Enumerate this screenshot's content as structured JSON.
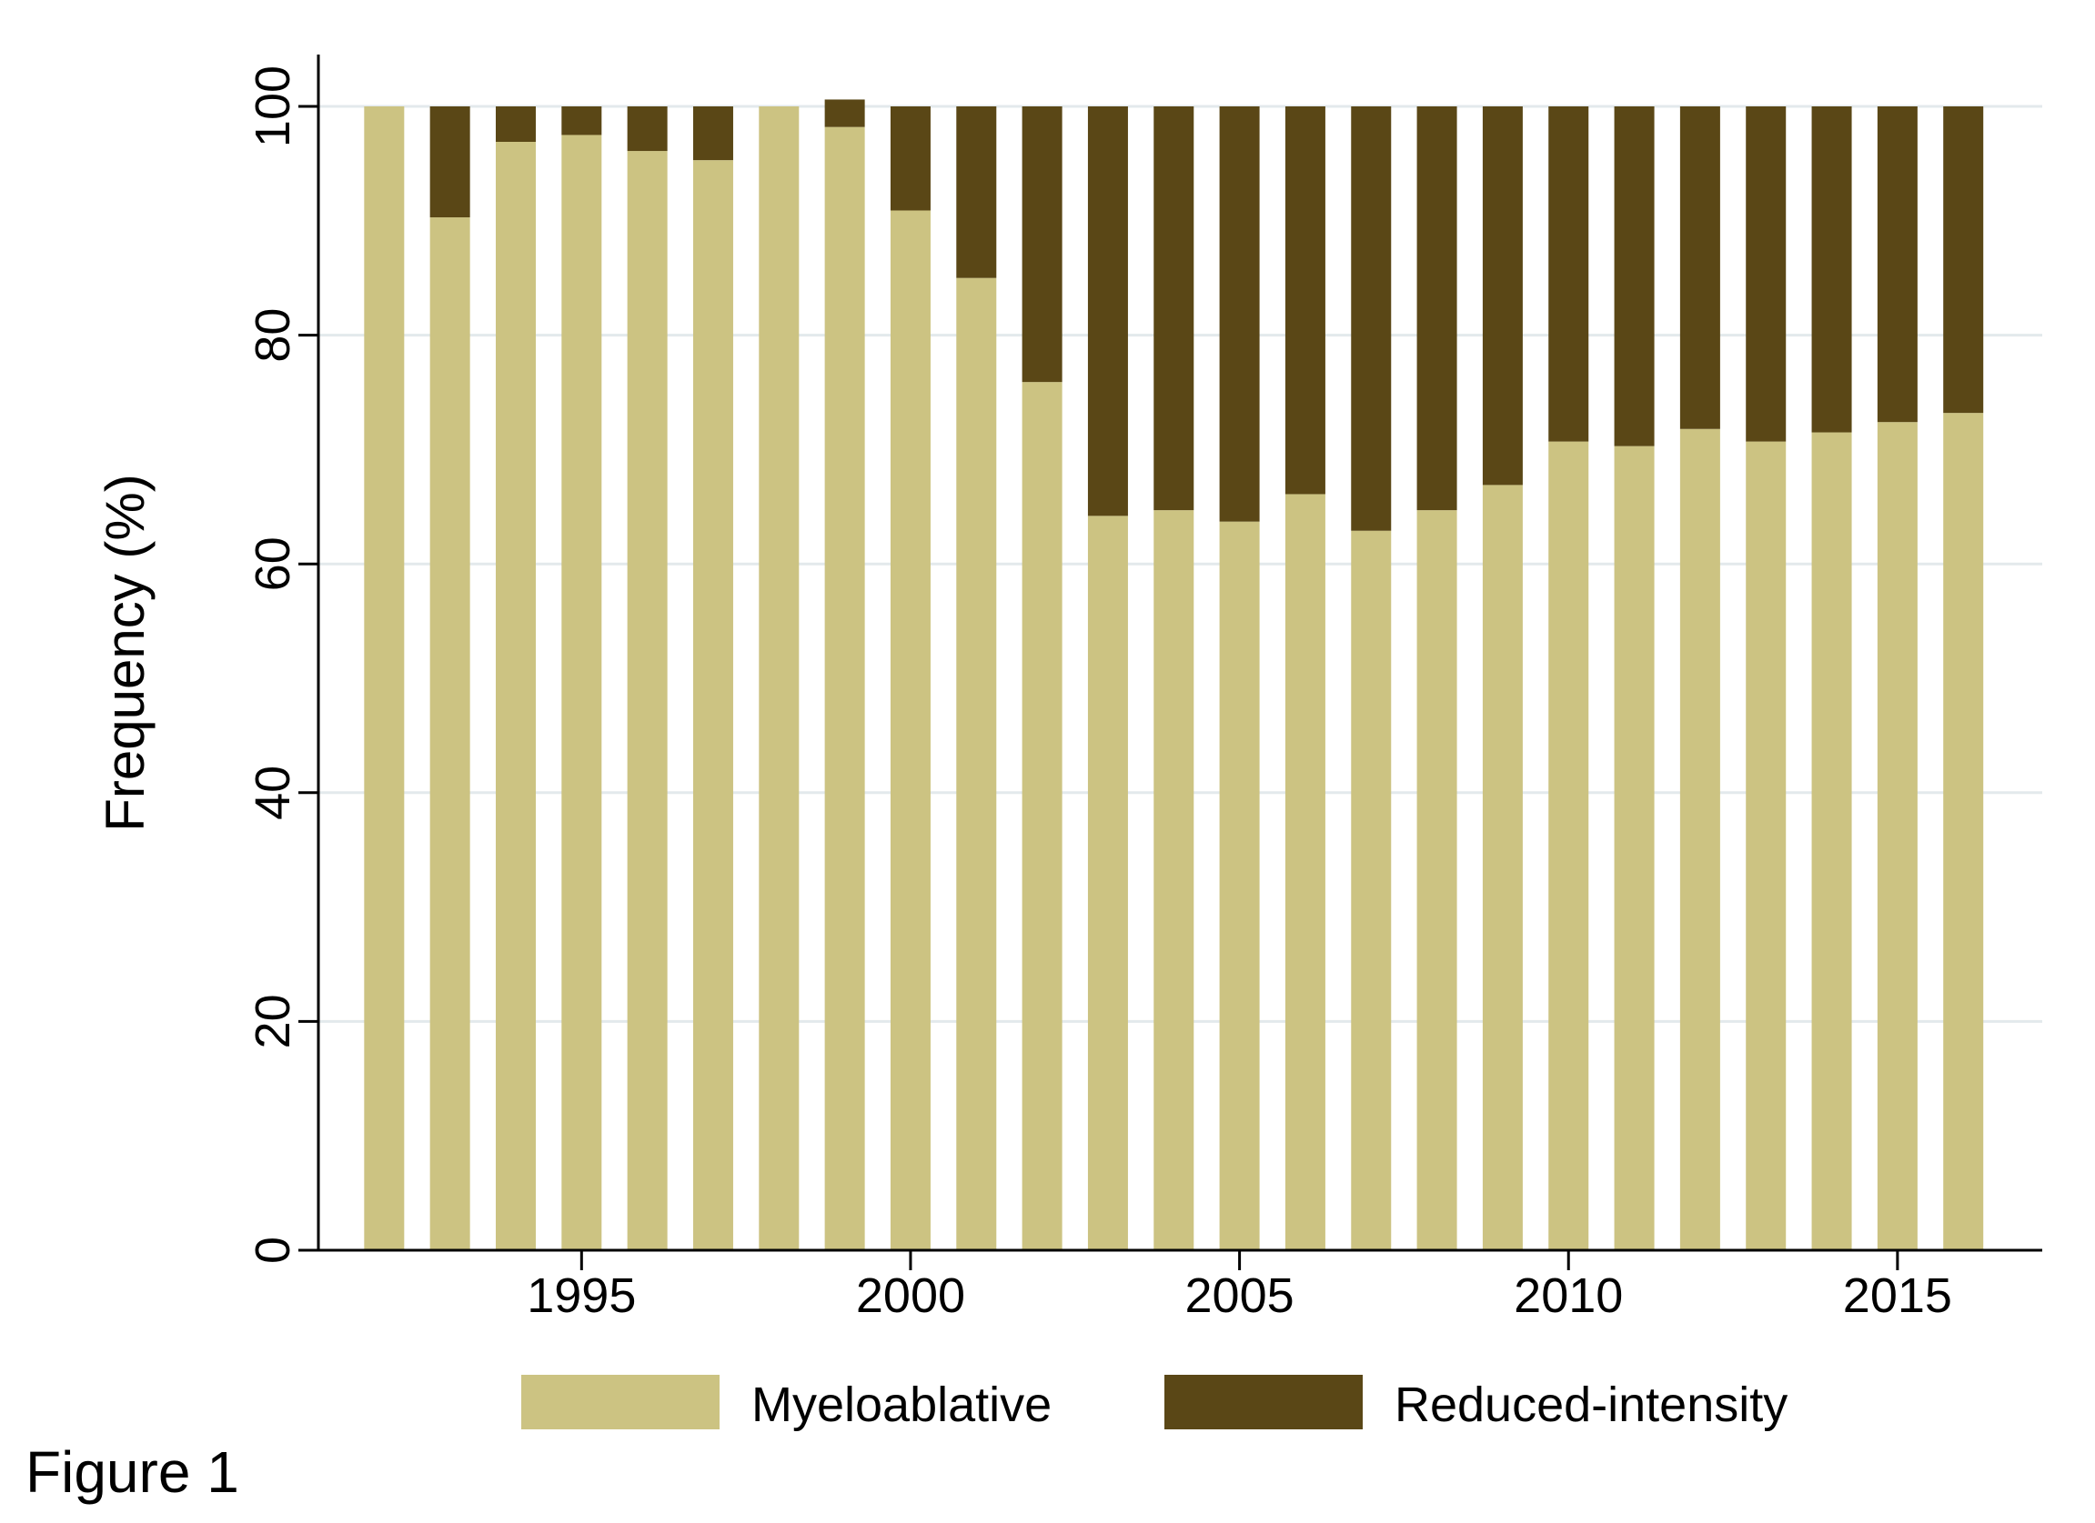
{
  "caption": "Figure 1",
  "colors": {
    "myeloablative": "#ccc382",
    "reduced_intensity": "#5a4716",
    "gridline": "#e3e9ec",
    "axis": "#000000"
  },
  "chart_data": {
    "type": "bar",
    "stacked": true,
    "title": "",
    "xlabel": "",
    "ylabel": "Frequency (%)",
    "ylim": [
      0,
      100
    ],
    "yticks": [
      0,
      20,
      40,
      60,
      80,
      100
    ],
    "xticks": [
      1995,
      2000,
      2005,
      2010,
      2015
    ],
    "xlim": [
      1991,
      2017.2
    ],
    "grid": true,
    "legend_position": "bottom",
    "x": [
      1992,
      1993,
      1994,
      1995,
      1996,
      1997,
      1998,
      1999,
      2000,
      2001,
      2002,
      2003,
      2004,
      2005,
      2006,
      2007,
      2008,
      2009,
      2010,
      2011,
      2012,
      2013,
      2014,
      2015,
      2016
    ],
    "series": [
      {
        "name": "Myeloablative",
        "values": [
          100,
          90.3,
          96.9,
          97.5,
          96.1,
          95.3,
          100,
          98.2,
          90.9,
          85,
          75.9,
          64.2,
          64.7,
          63.7,
          66.1,
          62.9,
          64.7,
          66.9,
          70.7,
          70.3,
          71.8,
          70.7,
          71.5,
          72.4,
          73.2
        ]
      },
      {
        "name": "Reduced-intensity",
        "values": [
          0,
          9.7,
          3.1,
          2.5,
          3.9,
          4.7,
          0,
          2.4,
          9.1,
          15,
          24.1,
          35.8,
          35.3,
          36.3,
          33.9,
          37.1,
          35.3,
          33.1,
          29.3,
          29.7,
          28.2,
          29.3,
          28.5,
          27.6,
          26.8
        ]
      }
    ]
  }
}
